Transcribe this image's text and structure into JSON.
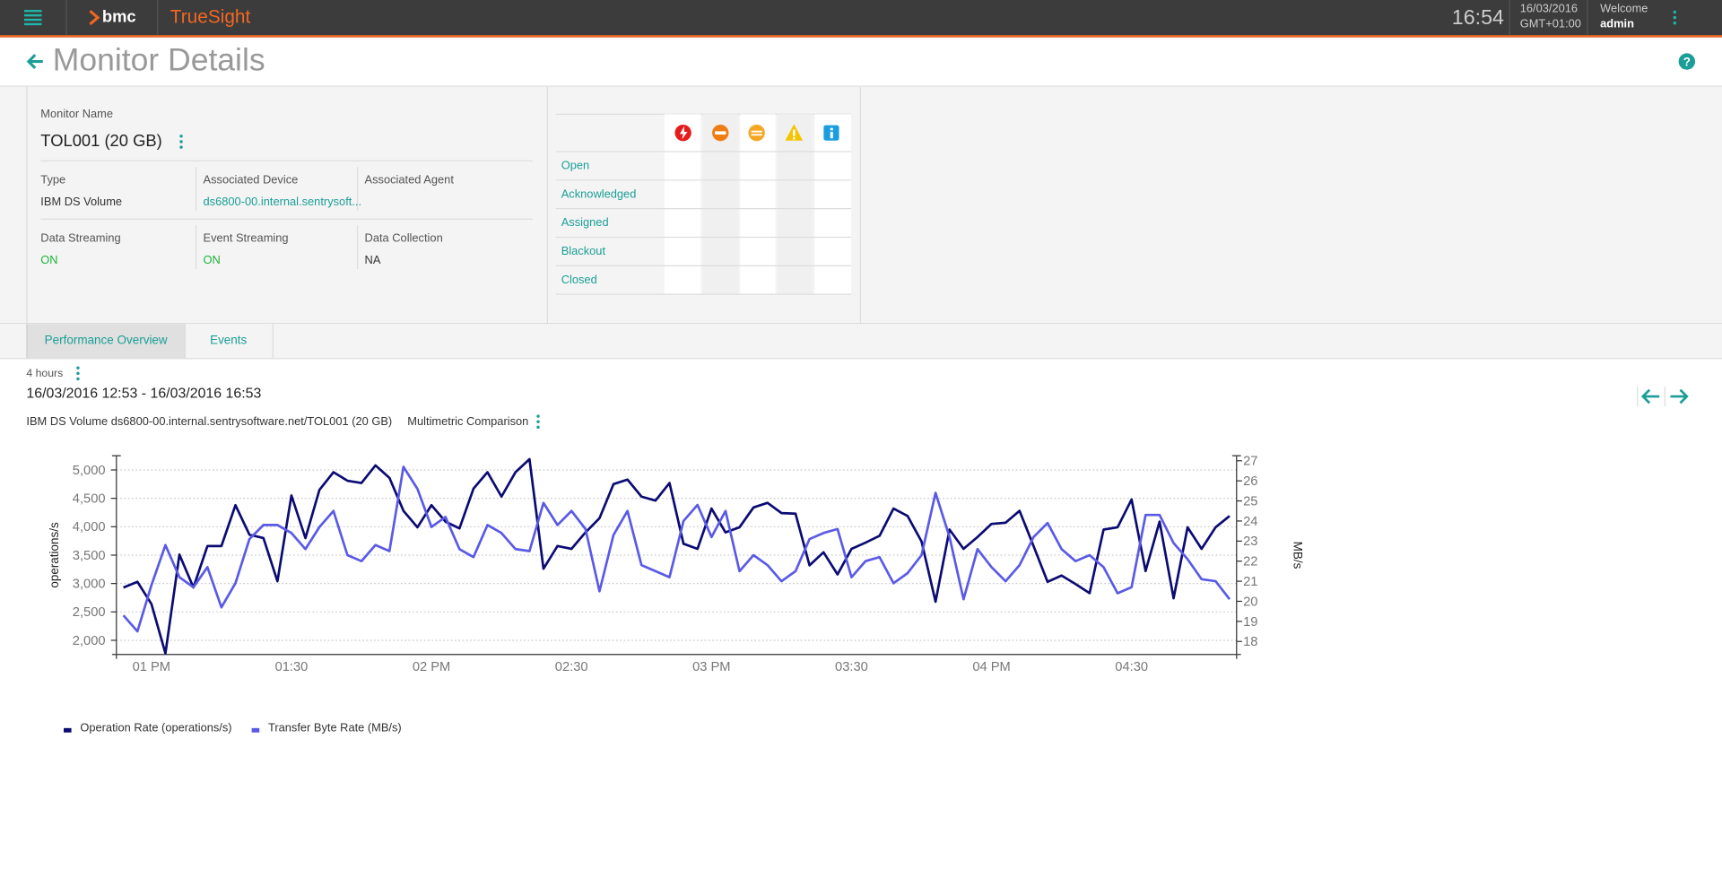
{
  "header": {
    "brand": "bmc",
    "product": "TrueSight",
    "time": "16:54",
    "date": "16/03/2016",
    "timezone": "GMT+01:00",
    "welcome": "Welcome",
    "user": "admin"
  },
  "page": {
    "title": "Monitor Details"
  },
  "monitor": {
    "name_label": "Monitor Name",
    "name": "TOL001 (20 GB)",
    "fields": [
      {
        "label": "Type",
        "value": "IBM DS Volume"
      },
      {
        "label": "Associated Device",
        "value": "ds6800-00.internal.sentrysoft..."
      },
      {
        "label": "Associated Agent"
      },
      {
        "label": "Data Streaming",
        "value": "ON"
      },
      {
        "label": "Event Streaming",
        "value": "ON"
      },
      {
        "label": "Data Collection",
        "value": "NA"
      }
    ]
  },
  "events": {
    "rows": [
      "Open",
      "Acknowledged",
      "Assigned",
      "Blackout",
      "Closed"
    ]
  },
  "tabs": [
    "Performance Overview",
    "Events"
  ],
  "range": {
    "duration": "4 hours",
    "period": "16/03/2016 12:53 - 16/03/2016 16:53"
  },
  "chart_data": {
    "type": "line",
    "title": "IBM DS Volume ds6800-00.internal.sentrysoftware.net/TOL001 (20 GB)",
    "subtitle": "Multimetric Comparison",
    "y_label": "operations/s",
    "y2_label": "MB/s",
    "categories": [
      null,
      null,
      "01 PM",
      null,
      null,
      null,
      null,
      null,
      null,
      null,
      null,
      null,
      "01:30",
      null,
      null,
      null,
      null,
      null,
      null,
      null,
      null,
      null,
      "02 PM",
      null,
      null,
      null,
      null,
      null,
      null,
      null,
      null,
      null,
      "02:30",
      null,
      null,
      null,
      null,
      null,
      null,
      null,
      null,
      null,
      "03 PM",
      null,
      null,
      null,
      null,
      null,
      null,
      null,
      null,
      null,
      "03:30",
      null,
      null,
      null,
      null,
      null,
      null,
      null,
      null,
      null,
      "04 PM",
      null,
      null,
      null,
      null,
      null,
      null,
      null,
      null,
      null,
      "04:30",
      null,
      null,
      null,
      null,
      null,
      null,
      null
    ],
    "ylim": [
      1750,
      5250
    ],
    "yticks": [
      {
        "value": 2000,
        "label": "2,000"
      },
      {
        "value": 2500,
        "label": "2,500"
      },
      {
        "value": 3000,
        "label": "3,000"
      },
      {
        "value": 3500,
        "label": "3,500"
      },
      {
        "value": 4000,
        "label": "4,000"
      },
      {
        "value": 4500,
        "label": "4,500"
      },
      {
        "value": 5000,
        "label": "5,000"
      }
    ],
    "y2lim": [
      17.35,
      27.25
    ],
    "y2ticks": [
      18,
      19,
      20,
      21,
      22,
      23,
      24,
      25,
      26,
      27
    ],
    "grid": true,
    "series": [
      {
        "name": "Operation Rate (operations/s)",
        "color": "#0b0b73",
        "values": [
          2930,
          3030,
          2640,
          1770,
          3510,
          2930,
          3660,
          3660,
          4380,
          3860,
          3800,
          3040,
          4550,
          3800,
          4650,
          4960,
          4810,
          4770,
          5080,
          4860,
          4280,
          3990,
          4380,
          4090,
          3970,
          4670,
          4960,
          4530,
          4960,
          5190,
          3260,
          3660,
          3610,
          3900,
          4150,
          4750,
          4830,
          4530,
          4460,
          4770,
          3700,
          3610,
          4320,
          3900,
          3990,
          4340,
          4420,
          4240,
          4230,
          3320,
          3550,
          3160,
          3610,
          3720,
          3840,
          4320,
          4190,
          3740,
          2680,
          3950,
          3610,
          3820,
          4050,
          4070,
          4280,
          3660,
          3030,
          3140,
          2990,
          2830,
          3950,
          3990,
          4480,
          3220,
          4090,
          2740,
          3990,
          3610,
          3990,
          4190
        ]
      },
      {
        "name": "Transfer Byte Rate (MB/s)",
        "color": "#5a5ae6",
        "axis": "y2",
        "values": [
          19.3,
          18.5,
          20.8,
          22.8,
          21.2,
          20.7,
          21.7,
          19.7,
          20.9,
          23.1,
          23.8,
          23.8,
          23.4,
          22.6,
          23.7,
          24.5,
          22.3,
          22.0,
          22.8,
          22.5,
          26.7,
          25.6,
          23.7,
          24.2,
          22.6,
          22.2,
          23.8,
          23.4,
          22.6,
          22.5,
          24.9,
          23.8,
          24.5,
          23.6,
          20.5,
          23.3,
          24.5,
          21.8,
          21.5,
          21.2,
          24.0,
          24.8,
          23.2,
          24.5,
          21.5,
          22.3,
          21.8,
          21.0,
          21.5,
          23.1,
          23.4,
          23.6,
          21.2,
          22.0,
          22.2,
          20.9,
          21.4,
          22.3,
          25.4,
          23.2,
          20.1,
          22.6,
          21.7,
          21.0,
          21.8,
          23.2,
          23.9,
          22.6,
          22.0,
          22.3,
          21.7,
          20.4,
          20.7,
          24.3,
          24.3,
          22.9,
          22.1,
          21.1,
          21.0,
          20.1
        ]
      }
    ]
  }
}
